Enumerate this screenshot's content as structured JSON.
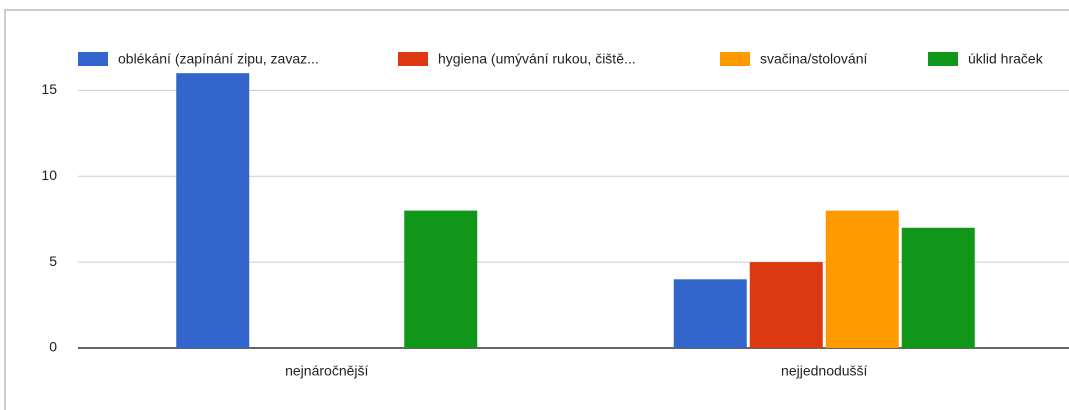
{
  "chart_data": {
    "type": "bar",
    "categories": [
      "nejnáročnější",
      "nejjednodušší"
    ],
    "series": [
      {
        "name": "oblékání (zapínání zipu, zavaz...",
        "color": "#3366cc",
        "values": [
          16,
          4
        ]
      },
      {
        "name": "hygiena (umývání rukou, čiště...",
        "color": "#dc3912",
        "values": [
          0,
          5
        ]
      },
      {
        "name": "svačina/stolování",
        "color": "#ff9900",
        "values": [
          0,
          8
        ]
      },
      {
        "name": "úklid hraček",
        "color": "#109618",
        "values": [
          8,
          7
        ]
      }
    ],
    "ylim": [
      0,
      17
    ],
    "yticks": [
      0,
      5,
      10,
      15
    ],
    "grid": true,
    "legend": "top"
  }
}
